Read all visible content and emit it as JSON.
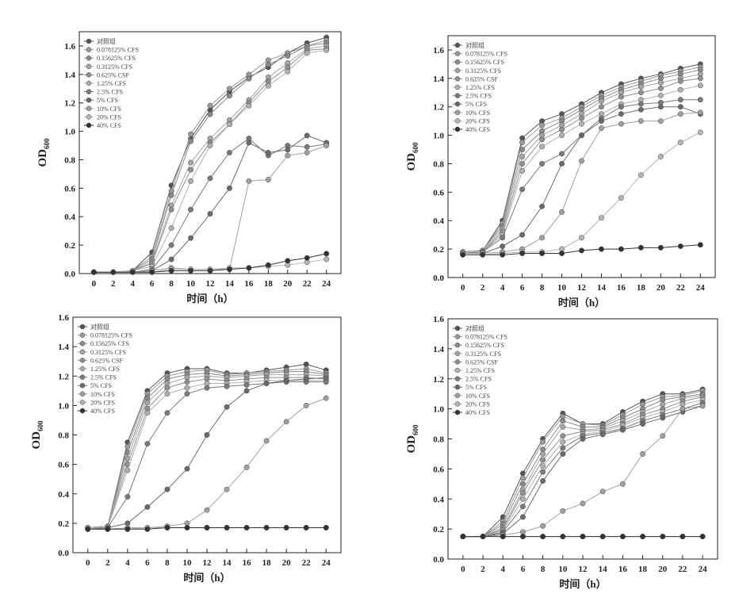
{
  "chart_data": [
    {
      "type": "line",
      "ylabel": "OD",
      "ylabel_subscript": "600",
      "xlabel": "时间（h）",
      "x": [
        0,
        2,
        4,
        6,
        8,
        10,
        12,
        14,
        16,
        18,
        20,
        22,
        24
      ],
      "xlim": [
        -1.5,
        25.5
      ],
      "xticks": [
        0,
        2,
        4,
        6,
        8,
        10,
        12,
        14,
        16,
        18,
        20,
        22,
        24
      ],
      "ylim": [
        0,
        1.7
      ],
      "yticks": [
        {
          "value": 0,
          "label": "0.0"
        },
        0.2,
        0.4,
        0.6,
        0.8,
        {
          "value": 1,
          "label": "1.0"
        },
        1.2,
        1.4,
        1.6
      ],
      "series": [
        {
          "name": "对照组",
          "color": "#555555",
          "values": [
            0.01,
            0.01,
            0.02,
            0.15,
            0.62,
            0.95,
            1.15,
            1.28,
            1.38,
            1.45,
            1.55,
            1.62,
            1.66
          ]
        },
        {
          "name": "0.078125% CFS",
          "color": "#9a9a9a",
          "values": [
            0.01,
            0.01,
            0.02,
            0.12,
            0.58,
            0.98,
            1.18,
            1.3,
            1.4,
            1.5,
            1.55,
            1.6,
            1.64
          ]
        },
        {
          "name": "0.15625% CFS",
          "color": "#8a8a8a",
          "values": [
            0.01,
            0.01,
            0.02,
            0.1,
            0.55,
            0.93,
            1.12,
            1.25,
            1.37,
            1.47,
            1.53,
            1.6,
            1.62
          ]
        },
        {
          "name": "0.3125% CFS",
          "color": "#a5a5a5",
          "values": [
            0.01,
            0.01,
            0.02,
            0.08,
            0.48,
            0.78,
            0.95,
            1.08,
            1.22,
            1.38,
            1.48,
            1.58,
            1.6
          ]
        },
        {
          "name": "0.625% CSF",
          "color": "#909090",
          "values": [
            0.01,
            0.01,
            0.02,
            0.07,
            0.45,
            0.73,
            0.92,
            1.05,
            1.2,
            1.35,
            1.45,
            1.57,
            1.58
          ]
        },
        {
          "name": "1.25% CFS",
          "color": "#b0b0b0",
          "values": [
            0.01,
            0.01,
            0.02,
            0.05,
            0.32,
            0.65,
            0.9,
            1.05,
            1.18,
            1.32,
            1.42,
            1.55,
            1.57
          ]
        },
        {
          "name": "2.5% CFS",
          "color": "#7a7a7a",
          "values": [
            0.01,
            0.01,
            0.01,
            0.03,
            0.2,
            0.45,
            0.67,
            0.85,
            0.95,
            0.83,
            0.9,
            0.89,
            0.91
          ]
        },
        {
          "name": "5% CFS",
          "color": "#6a6a6a",
          "values": [
            0.01,
            0.01,
            0.01,
            0.02,
            0.1,
            0.25,
            0.42,
            0.6,
            0.92,
            0.85,
            0.87,
            0.97,
            0.92
          ]
        },
        {
          "name": "10% CFS",
          "color": "#a0a0a0",
          "values": [
            0.01,
            0.01,
            0.01,
            0.02,
            0.04,
            0.03,
            0.03,
            0.03,
            0.65,
            0.66,
            0.83,
            0.85,
            0.9
          ]
        },
        {
          "name": "20% CFS",
          "color": "#b5b5b5",
          "values": [
            0.01,
            0.01,
            0.01,
            0.01,
            0.03,
            0.03,
            0.03,
            0.04,
            0.04,
            0.05,
            0.06,
            0.08,
            0.1
          ]
        },
        {
          "name": "40% CFS",
          "color": "#333333",
          "values": [
            0.01,
            0.01,
            0.01,
            0.01,
            0.02,
            0.02,
            0.02,
            0.03,
            0.04,
            0.06,
            0.09,
            0.11,
            0.14
          ]
        }
      ]
    },
    {
      "type": "line",
      "ylabel": "OD",
      "ylabel_subscript": "600",
      "xlabel": "时间（h）",
      "x": [
        0,
        2,
        4,
        6,
        8,
        10,
        12,
        14,
        16,
        18,
        20,
        22,
        24
      ],
      "xlim": [
        -1.5,
        25.5
      ],
      "xticks": [
        0,
        2,
        4,
        6,
        8,
        10,
        12,
        14,
        16,
        18,
        20,
        22,
        24
      ],
      "ylim": [
        0,
        1.7
      ],
      "yticks": [
        {
          "value": 0,
          "label": "0.0"
        },
        0.2,
        0.4,
        0.6,
        0.8,
        {
          "value": 1,
          "label": "1.0"
        },
        1.2,
        1.4,
        1.6
      ],
      "series": [
        {
          "name": "对照组",
          "color": "#555555",
          "values": [
            0.18,
            0.19,
            0.4,
            0.98,
            1.1,
            1.15,
            1.22,
            1.3,
            1.36,
            1.4,
            1.43,
            1.47,
            1.5
          ]
        },
        {
          "name": "0.078125% CFS",
          "color": "#9a9a9a",
          "values": [
            0.18,
            0.19,
            0.38,
            0.95,
            1.07,
            1.12,
            1.2,
            1.28,
            1.34,
            1.38,
            1.42,
            1.45,
            1.48
          ]
        },
        {
          "name": "0.15625% CFS",
          "color": "#8a8a8a",
          "values": [
            0.18,
            0.19,
            0.36,
            0.9,
            1.03,
            1.1,
            1.18,
            1.26,
            1.32,
            1.36,
            1.4,
            1.43,
            1.46
          ]
        },
        {
          "name": "0.3125% CFS",
          "color": "#a5a5a5",
          "values": [
            0.17,
            0.18,
            0.34,
            0.85,
            1.0,
            1.07,
            1.15,
            1.24,
            1.3,
            1.34,
            1.37,
            1.4,
            1.43
          ]
        },
        {
          "name": "0.625% CSF",
          "color": "#909090",
          "values": [
            0.17,
            0.18,
            0.32,
            0.8,
            0.97,
            1.04,
            1.12,
            1.2,
            1.27,
            1.3,
            1.33,
            1.38,
            1.4
          ]
        },
        {
          "name": "1.25% CFS",
          "color": "#b0b0b0",
          "values": [
            0.17,
            0.18,
            0.3,
            0.75,
            0.92,
            1.0,
            1.08,
            1.15,
            1.22,
            1.25,
            1.28,
            1.32,
            1.35
          ]
        },
        {
          "name": "2.5% CFS",
          "color": "#7a7a7a",
          "values": [
            0.17,
            0.18,
            0.28,
            0.62,
            0.8,
            0.87,
            1.0,
            1.12,
            1.2,
            1.22,
            1.23,
            1.25,
            1.25
          ]
        },
        {
          "name": "5% CFS",
          "color": "#6a6a6a",
          "values": [
            0.17,
            0.17,
            0.22,
            0.3,
            0.5,
            0.8,
            1.0,
            1.1,
            1.15,
            1.18,
            1.2,
            1.2,
            1.15
          ]
        },
        {
          "name": "10% CFS",
          "color": "#a0a0a0",
          "values": [
            0.17,
            0.17,
            0.18,
            0.2,
            0.28,
            0.46,
            0.82,
            1.05,
            1.08,
            1.1,
            1.1,
            1.15,
            1.16
          ]
        },
        {
          "name": "20% CFS",
          "color": "#b5b5b5",
          "values": [
            0.16,
            0.16,
            0.17,
            0.18,
            0.18,
            0.2,
            0.28,
            0.42,
            0.56,
            0.72,
            0.85,
            0.95,
            1.02
          ]
        },
        {
          "name": "40% CFS",
          "color": "#333333",
          "values": [
            0.16,
            0.16,
            0.16,
            0.17,
            0.17,
            0.17,
            0.19,
            0.2,
            0.2,
            0.21,
            0.21,
            0.22,
            0.23
          ]
        }
      ]
    },
    {
      "type": "line",
      "ylabel": "OD",
      "ylabel_subscript": "600",
      "xlabel": "时间（h）",
      "x": [
        0,
        2,
        4,
        6,
        8,
        10,
        12,
        14,
        16,
        18,
        20,
        22,
        24
      ],
      "xlim": [
        -1.5,
        25.5
      ],
      "xticks": [
        0,
        2,
        4,
        6,
        8,
        10,
        12,
        14,
        16,
        18,
        20,
        22,
        24
      ],
      "ylim": [
        0,
        1.6
      ],
      "yticks": [
        {
          "value": 0,
          "label": "0.0"
        },
        0.2,
        0.4,
        0.6,
        0.8,
        {
          "value": 1,
          "label": "1.0"
        },
        1.2,
        1.4,
        1.6
      ],
      "series": [
        {
          "name": "对照组",
          "color": "#555555",
          "values": [
            0.17,
            0.18,
            0.75,
            1.1,
            1.22,
            1.25,
            1.25,
            1.22,
            1.22,
            1.24,
            1.26,
            1.28,
            1.24
          ]
        },
        {
          "name": "0.078125% CFS",
          "color": "#9a9a9a",
          "values": [
            0.17,
            0.18,
            0.72,
            1.08,
            1.2,
            1.23,
            1.24,
            1.21,
            1.22,
            1.23,
            1.24,
            1.25,
            1.22
          ]
        },
        {
          "name": "0.15625% CFS",
          "color": "#8a8a8a",
          "values": [
            0.17,
            0.18,
            0.68,
            1.05,
            1.18,
            1.21,
            1.22,
            1.2,
            1.21,
            1.22,
            1.23,
            1.23,
            1.21
          ]
        },
        {
          "name": "0.3125% CFS",
          "color": "#a5a5a5",
          "values": [
            0.17,
            0.18,
            0.64,
            1.02,
            1.15,
            1.19,
            1.2,
            1.19,
            1.2,
            1.21,
            1.21,
            1.21,
            1.2
          ]
        },
        {
          "name": "0.625% CSF",
          "color": "#909090",
          "values": [
            0.17,
            0.17,
            0.6,
            0.98,
            1.12,
            1.16,
            1.18,
            1.17,
            1.18,
            1.19,
            1.19,
            1.19,
            1.18
          ]
        },
        {
          "name": "1.25% CFS",
          "color": "#b0b0b0",
          "values": [
            0.17,
            0.17,
            0.56,
            0.95,
            1.08,
            1.12,
            1.15,
            1.15,
            1.16,
            1.17,
            1.17,
            1.17,
            1.17
          ]
        },
        {
          "name": "2.5% CFS",
          "color": "#7a7a7a",
          "values": [
            0.16,
            0.17,
            0.38,
            0.74,
            0.95,
            1.08,
            1.12,
            1.13,
            1.14,
            1.15,
            1.16,
            1.16,
            1.16
          ]
        },
        {
          "name": "5% CFS",
          "color": "#6a6a6a",
          "values": [
            0.16,
            0.17,
            0.2,
            0.31,
            0.43,
            0.57,
            0.8,
            0.99,
            1.1,
            1.15,
            1.17,
            1.18,
            1.19
          ]
        },
        {
          "name": "10% CFS",
          "color": "#a0a0a0",
          "values": [
            0.16,
            0.16,
            0.17,
            0.17,
            0.18,
            0.2,
            0.29,
            0.43,
            0.58,
            0.76,
            0.89,
            1.0,
            1.05
          ]
        },
        {
          "name": "20% CFS",
          "color": "#b5b5b5",
          "values": [
            0.16,
            0.16,
            0.16,
            0.17,
            0.17,
            0.17,
            0.17,
            0.17,
            0.17,
            0.17,
            0.17,
            0.17,
            0.17
          ]
        },
        {
          "name": "40% CFS",
          "color": "#333333",
          "values": [
            0.16,
            0.16,
            0.16,
            0.16,
            0.17,
            0.17,
            0.17,
            0.17,
            0.17,
            0.17,
            0.17,
            0.17,
            0.17
          ]
        }
      ]
    },
    {
      "type": "line",
      "ylabel": "OD",
      "ylabel_subscript": "600",
      "xlabel": "时间（h）",
      "x": [
        0,
        2,
        4,
        6,
        8,
        10,
        12,
        14,
        16,
        18,
        20,
        22,
        24
      ],
      "xlim": [
        -1.5,
        25.5
      ],
      "xticks": [
        0,
        2,
        4,
        6,
        8,
        10,
        12,
        14,
        16,
        18,
        20,
        22,
        24
      ],
      "ylim": [
        0,
        1.6
      ],
      "yticks": [
        {
          "value": 0,
          "label": "0.0"
        },
        0.2,
        0.4,
        0.6,
        0.8,
        {
          "value": 1,
          "label": "1.0"
        },
        1.2,
        1.4,
        1.6
      ],
      "series": [
        {
          "name": "对照组",
          "color": "#555555",
          "values": [
            0.15,
            0.15,
            0.28,
            0.57,
            0.8,
            0.97,
            0.9,
            0.9,
            0.98,
            1.05,
            1.1,
            1.1,
            1.13
          ]
        },
        {
          "name": "0.078125% CFS",
          "color": "#9a9a9a",
          "values": [
            0.15,
            0.15,
            0.25,
            0.54,
            0.78,
            0.95,
            0.9,
            0.89,
            0.96,
            1.03,
            1.08,
            1.09,
            1.12
          ]
        },
        {
          "name": "0.15625% CFS",
          "color": "#8a8a8a",
          "values": [
            0.15,
            0.15,
            0.23,
            0.5,
            0.73,
            0.92,
            0.88,
            0.88,
            0.94,
            1.0,
            1.06,
            1.08,
            1.1
          ]
        },
        {
          "name": "0.3125% CFS",
          "color": "#a5a5a5",
          "values": [
            0.15,
            0.15,
            0.21,
            0.46,
            0.7,
            0.88,
            0.86,
            0.87,
            0.92,
            0.98,
            1.03,
            1.07,
            1.09
          ]
        },
        {
          "name": "0.625% CSF",
          "color": "#909090",
          "values": [
            0.15,
            0.15,
            0.2,
            0.44,
            0.66,
            0.82,
            0.85,
            0.86,
            0.9,
            0.96,
            1.0,
            1.05,
            1.08
          ]
        },
        {
          "name": "1.25% CFS",
          "color": "#b0b0b0",
          "values": [
            0.15,
            0.15,
            0.19,
            0.4,
            0.62,
            0.78,
            0.83,
            0.85,
            0.89,
            0.94,
            0.98,
            1.03,
            1.06
          ]
        },
        {
          "name": "2.5% CFS",
          "color": "#7a7a7a",
          "values": [
            0.15,
            0.15,
            0.18,
            0.35,
            0.58,
            0.74,
            0.82,
            0.84,
            0.87,
            0.92,
            0.96,
            1.0,
            1.04
          ]
        },
        {
          "name": "5% CFS",
          "color": "#6a6a6a",
          "values": [
            0.15,
            0.15,
            0.17,
            0.28,
            0.52,
            0.7,
            0.8,
            0.83,
            0.86,
            0.9,
            0.94,
            0.98,
            1.02
          ]
        },
        {
          "name": "10% CFS",
          "color": "#a0a0a0",
          "values": [
            0.15,
            0.15,
            0.16,
            0.18,
            0.22,
            0.32,
            0.37,
            0.45,
            0.5,
            0.7,
            0.82,
            1.0,
            1.02
          ]
        },
        {
          "name": "20% CFS",
          "color": "#b5b5b5",
          "values": [
            0.15,
            0.15,
            0.15,
            0.15,
            0.15,
            0.15,
            0.15,
            0.15,
            0.15,
            0.15,
            0.15,
            0.15,
            0.15
          ]
        },
        {
          "name": "40% CFS",
          "color": "#333333",
          "values": [
            0.15,
            0.15,
            0.15,
            0.15,
            0.15,
            0.15,
            0.15,
            0.15,
            0.15,
            0.15,
            0.15,
            0.15,
            0.15
          ]
        }
      ]
    }
  ]
}
